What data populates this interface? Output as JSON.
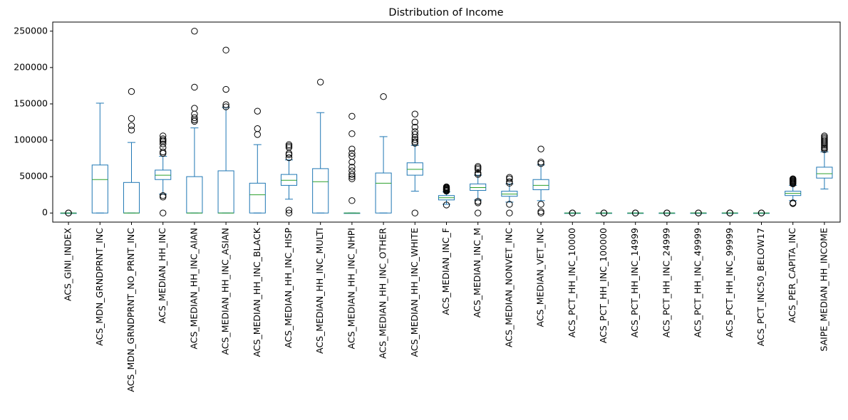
{
  "chart_data": {
    "type": "box",
    "title": "Distribution of Income",
    "xlabel": "",
    "ylabel": "",
    "ylim": [
      -12500,
      262500
    ],
    "yticks": [
      0,
      50000,
      100000,
      150000,
      200000,
      250000
    ],
    "ytick_labels": [
      "0",
      "50000",
      "100000",
      "150000",
      "200000",
      "250000"
    ],
    "grid": false,
    "colors": {
      "box": "#1f77b4",
      "median": "#2ca02c",
      "flier": "#000000"
    },
    "series": [
      {
        "name": "ACS_GINI_INDEX",
        "q1": 0.4,
        "median": 0.45,
        "q3": 0.5,
        "whisker_low": 0.3,
        "whisker_high": 0.6,
        "fliers": [
          0.2,
          0.7
        ]
      },
      {
        "name": "ACS_MDN_GRNDPRNT_INC",
        "q1": 0,
        "median": 46000,
        "q3": 66000,
        "whisker_low": 0,
        "whisker_high": 151000,
        "fliers": []
      },
      {
        "name": "ACS_MDN_GRNDPRNT_NO_PRNT_INC",
        "q1": 0,
        "median": 0,
        "q3": 42000,
        "whisker_low": 0,
        "whisker_high": 97000,
        "fliers": [
          114000,
          120000,
          130000,
          167000
        ]
      },
      {
        "name": "ACS_MEDIAN_HH_INC",
        "q1": 46000,
        "median": 52000,
        "q3": 59000,
        "whisker_low": 26000,
        "whisker_high": 78000,
        "fliers": [
          0,
          22000,
          24000,
          82000,
          84000,
          90000,
          95000,
          98000,
          100000,
          102000,
          106000
        ]
      },
      {
        "name": "ACS_MEDIAN_HH_INC_AIAN",
        "q1": 0,
        "median": 0,
        "q3": 50000,
        "whisker_low": 0,
        "whisker_high": 117000,
        "fliers": [
          126000,
          128000,
          131000,
          136000,
          144000,
          173000,
          250000
        ]
      },
      {
        "name": "ACS_MEDIAN_HH_INC_ASIAN",
        "q1": 0,
        "median": 0,
        "q3": 58000,
        "whisker_low": 0,
        "whisker_high": 145000,
        "fliers": [
          146000,
          149000,
          170000,
          224000
        ]
      },
      {
        "name": "ACS_MEDIAN_HH_INC_BLACK",
        "q1": 0,
        "median": 25000,
        "q3": 41000,
        "whisker_low": 0,
        "whisker_high": 94000,
        "fliers": [
          108000,
          116000,
          140000
        ]
      },
      {
        "name": "ACS_MEDIAN_HH_INC_HISP",
        "q1": 38000,
        "median": 45000,
        "q3": 53000,
        "whisker_low": 19000,
        "whisker_high": 73000,
        "fliers": [
          0,
          4000,
          76000,
          80000,
          82000,
          90000,
          92000,
          94000
        ]
      },
      {
        "name": "ACS_MEDIAN_HH_INC_MULTI",
        "q1": 0,
        "median": 43000,
        "q3": 61000,
        "whisker_low": 0,
        "whisker_high": 138000,
        "fliers": [
          180000
        ]
      },
      {
        "name": "ACS_MEDIAN_HH_INC_NHPI",
        "q1": 0,
        "median": 0,
        "q3": 0,
        "whisker_low": 0,
        "whisker_high": 0,
        "fliers": [
          17000,
          47000,
          50000,
          53000,
          58000,
          63000,
          70000,
          78000,
          82000,
          88000,
          109000,
          133000
        ]
      },
      {
        "name": "ACS_MEDIAN_HH_INC_OTHER",
        "q1": 0,
        "median": 41000,
        "q3": 55000,
        "whisker_low": 0,
        "whisker_high": 105000,
        "fliers": [
          160000
        ]
      },
      {
        "name": "ACS_MEDIAN_HH_INC_WHITE",
        "q1": 52000,
        "median": 60000,
        "q3": 69000,
        "whisker_low": 30000,
        "whisker_high": 93000,
        "fliers": [
          0,
          96000,
          98000,
          101000,
          104000,
          108000,
          112000,
          118000,
          125000,
          136000
        ]
      },
      {
        "name": "ACS_MEDIAN_INC_F",
        "q1": 18000,
        "median": 21000,
        "q3": 24000,
        "whisker_low": 12000,
        "whisker_high": 29000,
        "fliers": [
          11000,
          30000,
          31000,
          32000,
          33000,
          34000,
          35000,
          36000
        ]
      },
      {
        "name": "ACS_MEDIAN_INC_M",
        "q1": 31000,
        "median": 35000,
        "q3": 40000,
        "whisker_low": 18000,
        "whisker_high": 52000,
        "fliers": [
          0,
          14000,
          16000,
          53000,
          55000,
          60000,
          62000,
          64000
        ]
      },
      {
        "name": "ACS_MEDIAN_NONVET_INC",
        "q1": 23000,
        "median": 26000,
        "q3": 30000,
        "whisker_low": 15000,
        "whisker_high": 40000,
        "fliers": [
          0,
          12000,
          41000,
          43000,
          47000,
          49000
        ]
      },
      {
        "name": "ACS_MEDIAN_VET_INC",
        "q1": 32000,
        "median": 38000,
        "q3": 46000,
        "whisker_low": 17000,
        "whisker_high": 66000,
        "fliers": [
          0,
          2000,
          12000,
          68000,
          70000,
          88000
        ]
      },
      {
        "name": "ACS_PCT_HH_INC_10000",
        "q1": 5,
        "median": 7,
        "q3": 9,
        "whisker_low": 1,
        "whisker_high": 15,
        "fliers": [
          0,
          20
        ]
      },
      {
        "name": "ACS_PCT_HH_INC_100000",
        "q1": 20,
        "median": 25,
        "q3": 30,
        "whisker_low": 5,
        "whisker_high": 45,
        "fliers": [
          0,
          60
        ]
      },
      {
        "name": "ACS_PCT_HH_INC_14999",
        "q1": 8,
        "median": 11,
        "q3": 14,
        "whisker_low": 2,
        "whisker_high": 22,
        "fliers": [
          0,
          30
        ]
      },
      {
        "name": "ACS_PCT_HH_INC_24999",
        "q1": 15,
        "median": 19,
        "q3": 24,
        "whisker_low": 5,
        "whisker_high": 35,
        "fliers": [
          0,
          45
        ]
      },
      {
        "name": "ACS_PCT_HH_INC_49999",
        "q1": 35,
        "median": 40,
        "q3": 46,
        "whisker_low": 20,
        "whisker_high": 60,
        "fliers": [
          0,
          75
        ]
      },
      {
        "name": "ACS_PCT_HH_INC_99999",
        "q1": 70,
        "median": 75,
        "q3": 80,
        "whisker_low": 55,
        "whisker_high": 95,
        "fliers": [
          40,
          100
        ]
      },
      {
        "name": "ACS_PCT_INC50_BELOW17",
        "q1": 8,
        "median": 12,
        "q3": 16,
        "whisker_low": 1,
        "whisker_high": 27,
        "fliers": [
          0,
          40
        ]
      },
      {
        "name": "ACS_PER_CAPITA_INC",
        "q1": 24000,
        "median": 27000,
        "q3": 30000,
        "whisker_low": 17000,
        "whisker_high": 38000,
        "fliers": [
          13000,
          14000,
          40000,
          41000,
          42000,
          43000,
          44000,
          45000,
          46000,
          47000
        ]
      },
      {
        "name": "SAIPE_MEDIAN_HH_INCOME",
        "q1": 48000,
        "median": 54000,
        "q3": 63000,
        "whisker_low": 33000,
        "whisker_high": 84000,
        "fliers": [
          87000,
          89000,
          90000,
          92000,
          94000,
          96000,
          98000,
          100000,
          102000,
          104000,
          106000
        ]
      }
    ]
  }
}
